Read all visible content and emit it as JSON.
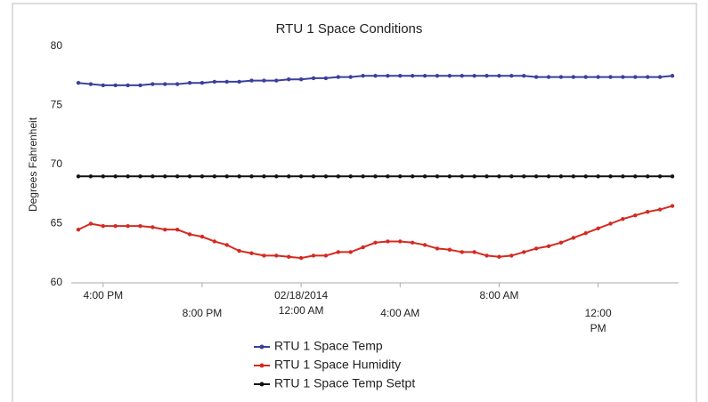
{
  "chart_data": {
    "type": "line",
    "title": "RTU 1 Space Conditions",
    "y_label": "Degrees Fahrenheit",
    "categories": [
      null,
      null,
      "4:00 PM",
      null,
      null,
      null,
      null,
      null,
      null,
      null,
      "8:00 PM",
      null,
      null,
      null,
      null,
      null,
      null,
      null,
      "02/18/2014 12:00 AM",
      null,
      null,
      null,
      null,
      null,
      null,
      null,
      "4:00 AM",
      null,
      null,
      null,
      null,
      null,
      null,
      null,
      "8:00 AM",
      null,
      null,
      null,
      null,
      null,
      null,
      null,
      "12:00 PM",
      null,
      null,
      null,
      null,
      null,
      null
    ],
    "series": [
      {
        "name": "RTU 1 Space Temp",
        "color": "#3a3f9e",
        "values": [
          76.9,
          76.8,
          76.7,
          76.7,
          76.7,
          76.7,
          76.8,
          76.8,
          76.8,
          76.9,
          76.9,
          77.0,
          77.0,
          77.0,
          77.1,
          77.1,
          77.1,
          77.2,
          77.2,
          77.3,
          77.3,
          77.4,
          77.4,
          77.5,
          77.5,
          77.5,
          77.5,
          77.5,
          77.5,
          77.5,
          77.5,
          77.5,
          77.5,
          77.5,
          77.5,
          77.5,
          77.5,
          77.4,
          77.4,
          77.4,
          77.4,
          77.4,
          77.4,
          77.4,
          77.4,
          77.4,
          77.4,
          77.4,
          77.5
        ]
      },
      {
        "name": "RTU 1 Space Humidity",
        "color": "#d42a20",
        "values": [
          64.5,
          65.0,
          64.8,
          64.8,
          64.8,
          64.8,
          64.7,
          64.5,
          64.5,
          64.1,
          63.9,
          63.5,
          63.2,
          62.7,
          62.5,
          62.3,
          62.3,
          62.2,
          62.1,
          62.3,
          62.3,
          62.6,
          62.6,
          63.0,
          63.4,
          63.5,
          63.5,
          63.4,
          63.2,
          62.9,
          62.8,
          62.6,
          62.6,
          62.3,
          62.2,
          62.3,
          62.6,
          62.9,
          63.1,
          63.4,
          63.8,
          64.2,
          64.6,
          65.0,
          65.4,
          65.7,
          66.0,
          66.2,
          66.5
        ]
      },
      {
        "name": "RTU 1 Space Temp Setpt",
        "color": "#111111",
        "values": [
          69,
          69,
          69,
          69,
          69,
          69,
          69,
          69,
          69,
          69,
          69,
          69,
          69,
          69,
          69,
          69,
          69,
          69,
          69,
          69,
          69,
          69,
          69,
          69,
          69,
          69,
          69,
          69,
          69,
          69,
          69,
          69,
          69,
          69,
          69,
          69,
          69,
          69,
          69,
          69,
          69,
          69,
          69,
          69,
          69,
          69,
          69,
          69,
          69
        ]
      }
    ],
    "ylim": [
      60,
      80
    ],
    "yticks": [
      60,
      65,
      70,
      75,
      80
    ],
    "grid": false,
    "legend": "bottom"
  }
}
